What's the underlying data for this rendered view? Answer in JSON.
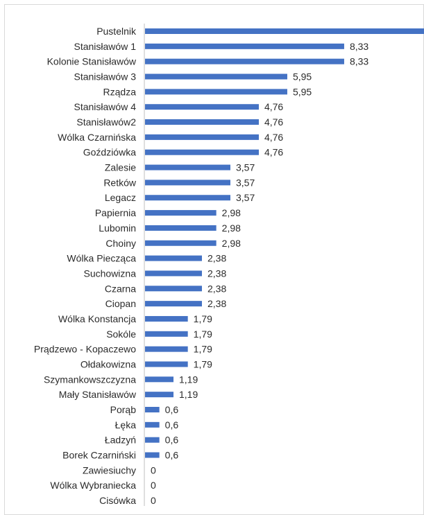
{
  "chart_data": {
    "type": "bar",
    "orientation": "horizontal",
    "title": "",
    "xlabel": "",
    "ylabel": "",
    "grid": false,
    "legend": "none",
    "bar_color": "#4472C4",
    "categories": [
      "Pustelnik",
      "Stanisławów 1",
      "Kolonie Stanisławów",
      "Stanisławów 3",
      "Rządza",
      "Stanisławów 4",
      "Stanisławów2",
      "Wólka Czarnińska",
      "Goździówka",
      "Zalesie",
      "Retków",
      "Legacz",
      "Papiernia",
      "Lubomin",
      "Choiny",
      "Wólka Piecząca",
      "Suchowizna",
      "Czarna",
      "Ciopan",
      "Wólka Konstancja",
      "Sokóle",
      "Prądzewo - Kopaczewo",
      "Ołdakowizna",
      "Szymankowszczyzna",
      "Mały Stanisławów",
      "Porąb",
      "Łęka",
      "Ładzyń",
      "Borek Czarniński",
      "Zawiesiuchy",
      "Wólka Wybraniecka",
      "Cisówka"
    ],
    "values": [
      11.9,
      8.33,
      8.33,
      5.95,
      5.95,
      4.76,
      4.76,
      4.76,
      4.76,
      3.57,
      3.57,
      3.57,
      2.98,
      2.98,
      2.98,
      2.38,
      2.38,
      2.38,
      2.38,
      1.79,
      1.79,
      1.79,
      1.79,
      1.19,
      1.19,
      0.6,
      0.6,
      0.6,
      0.6,
      0,
      0,
      0
    ],
    "value_labels": [
      "",
      "8,33",
      "8,33",
      "5,95",
      "5,95",
      "4,76",
      "4,76",
      "4,76",
      "4,76",
      "3,57",
      "3,57",
      "3,57",
      "2,98",
      "2,98",
      "2,98",
      "2,38",
      "2,38",
      "2,38",
      "2,38",
      "1,79",
      "1,79",
      "1,79",
      "1,79",
      "1,19",
      "1,19",
      "0,6",
      "0,6",
      "0,6",
      "0,6",
      "0",
      "0",
      "0"
    ]
  }
}
